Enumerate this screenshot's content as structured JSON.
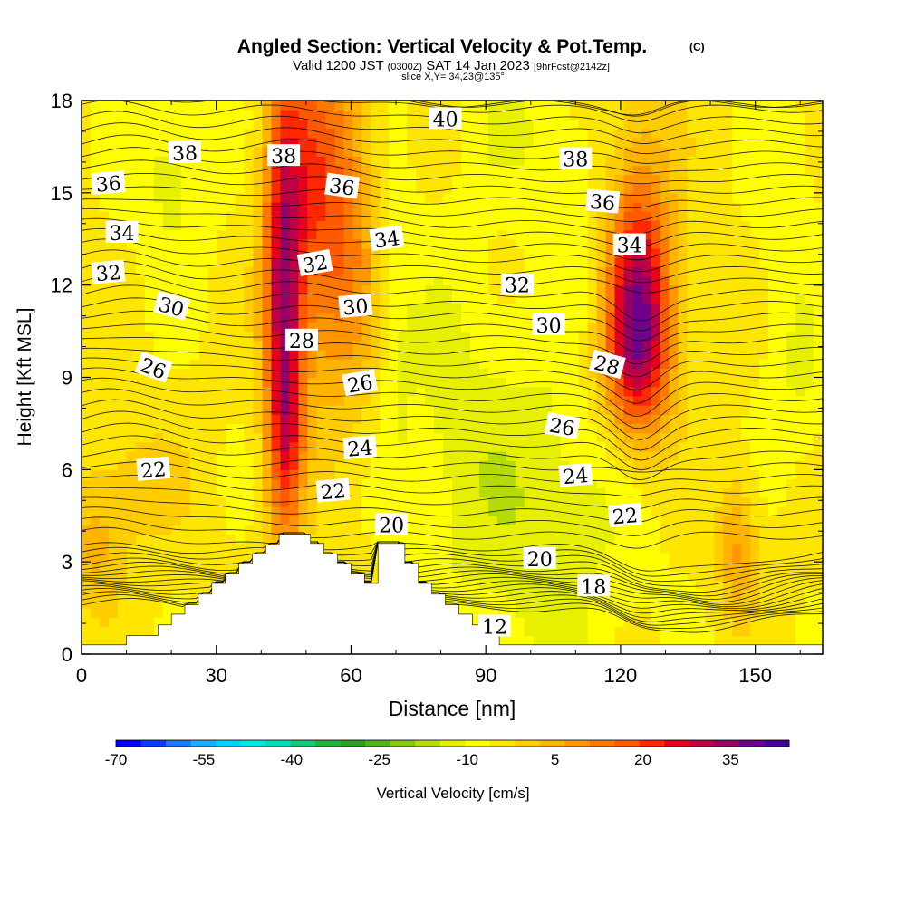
{
  "header": {
    "title": "Angled Section: Vertical Velocity & Pot.Temp.",
    "title_suffix": "(C)",
    "valid_prefix": "Valid 1200 JST",
    "valid_z": "(0300Z)",
    "valid_date": "SAT 14 Jan 2023",
    "valid_fcst": "[9hrFcst@2142z]",
    "slice": "slice X,Y= 34,23@135°"
  },
  "chart_data": {
    "type": "heatmap",
    "xlabel": "Distance [nm]",
    "ylabel": "Height [Kft MSL]",
    "xlim": [
      0,
      165
    ],
    "ylim": [
      0,
      18
    ],
    "xticks": [
      "0",
      "30",
      "60",
      "90",
      "120",
      "150"
    ],
    "yticks": [
      "0",
      "3",
      "6",
      "9",
      "12",
      "15",
      "18"
    ],
    "colorbar": {
      "label": "Vertical Velocity [cm/s]",
      "tick_labels": [
        "-70",
        "-55",
        "-40",
        "-25",
        "-10",
        "5",
        "20",
        "35"
      ],
      "min": -70,
      "max": 45,
      "step": 5,
      "colors": [
        "#0000ff",
        "#0a3cff",
        "#1e78ff",
        "#1eaaff",
        "#00d2ff",
        "#00e6e6",
        "#00dcb4",
        "#14c878",
        "#1eb43c",
        "#28a01e",
        "#50b41e",
        "#82c814",
        "#b4dc0a",
        "#e6f000",
        "#ffff00",
        "#ffe600",
        "#ffcd00",
        "#ffb400",
        "#ff9600",
        "#ff7800",
        "#ff5a00",
        "#ff2800",
        "#e6001e",
        "#be0046",
        "#960064",
        "#6e008c",
        "#46009b"
      ]
    },
    "background_velocity": 6,
    "velocity_features": [
      {
        "x": 45,
        "y": 11,
        "sx": 3,
        "sy": 5,
        "v": 40
      },
      {
        "x": 46,
        "y": 7,
        "sx": 2.5,
        "sy": 1.8,
        "v": 10
      },
      {
        "x": 52,
        "y": 15,
        "sx": 6,
        "sy": 4,
        "v": 25
      },
      {
        "x": 60,
        "y": 13,
        "sx": 5,
        "sy": 4,
        "v": 12
      },
      {
        "x": 124,
        "y": 10.8,
        "sx": 5,
        "sy": 2.5,
        "v": 40
      },
      {
        "x": 124,
        "y": 14,
        "sx": 6,
        "sy": 3.5,
        "v": 14
      },
      {
        "x": 122,
        "y": 9,
        "sx": 7,
        "sy": 1.5,
        "v": 8
      },
      {
        "x": 146,
        "y": 3.5,
        "sx": 3,
        "sy": 1.5,
        "v": 15
      },
      {
        "x": 3,
        "y": 3.5,
        "sx": 5,
        "sy": 1.5,
        "v": 10
      },
      {
        "x": 13,
        "y": 5.5,
        "sx": 7,
        "sy": 1.2,
        "v": 8
      },
      {
        "x": 103,
        "y": 4.5,
        "sx": 14,
        "sy": 4,
        "v": -10
      },
      {
        "x": 82,
        "y": 8,
        "sx": 8,
        "sy": 4,
        "v": -6
      },
      {
        "x": 20,
        "y": 16,
        "sx": 7,
        "sy": 2.5,
        "v": -8
      },
      {
        "x": 98,
        "y": 17,
        "sx": 8,
        "sy": 1.5,
        "v": -6
      },
      {
        "x": 70,
        "y": 11,
        "sx": 3,
        "sy": 5,
        "v": -5
      },
      {
        "x": 160,
        "y": 9,
        "sx": 5,
        "sy": 2,
        "v": -6
      },
      {
        "x": 156,
        "y": 15,
        "sx": 5,
        "sy": 3,
        "v": -5
      },
      {
        "x": 115,
        "y": 14,
        "sx": 7,
        "sy": 3,
        "v": -4
      }
    ],
    "terrain": [
      [
        0,
        0.3
      ],
      [
        10,
        0.3
      ],
      [
        10,
        0.6
      ],
      [
        17,
        0.6
      ],
      [
        17,
        0.95
      ],
      [
        20,
        0.95
      ],
      [
        20,
        1.3
      ],
      [
        23,
        1.3
      ],
      [
        23,
        1.6
      ],
      [
        26,
        1.6
      ],
      [
        26,
        1.95
      ],
      [
        29,
        1.95
      ],
      [
        29,
        2.3
      ],
      [
        32,
        2.3
      ],
      [
        32,
        2.6
      ],
      [
        35,
        2.6
      ],
      [
        35,
        2.95
      ],
      [
        38,
        2.95
      ],
      [
        38,
        3.25
      ],
      [
        41,
        3.25
      ],
      [
        41,
        3.55
      ],
      [
        44,
        3.55
      ],
      [
        44,
        3.9
      ],
      [
        51,
        3.9
      ],
      [
        51,
        3.6
      ],
      [
        54,
        3.6
      ],
      [
        54,
        3.25
      ],
      [
        57,
        3.25
      ],
      [
        57,
        2.95
      ],
      [
        60,
        2.95
      ],
      [
        60,
        2.6
      ],
      [
        63,
        2.6
      ],
      [
        63,
        2.3
      ],
      [
        66,
        2.3
      ],
      [
        66,
        3.6
      ],
      [
        72,
        3.6
      ],
      [
        72,
        2.95
      ],
      [
        75,
        2.95
      ],
      [
        75,
        2.3
      ],
      [
        78,
        2.3
      ],
      [
        78,
        1.95
      ],
      [
        81,
        1.95
      ],
      [
        81,
        1.6
      ],
      [
        84,
        1.6
      ],
      [
        84,
        1.3
      ],
      [
        87,
        1.3
      ],
      [
        87,
        0.95
      ],
      [
        90,
        0.95
      ],
      [
        90,
        0.6
      ],
      [
        93,
        0.6
      ],
      [
        93,
        0.3
      ],
      [
        165,
        0.3
      ]
    ],
    "theta_levels": [
      12,
      14,
      16,
      18,
      20,
      22,
      24,
      26,
      28,
      30,
      32,
      34,
      36,
      38,
      40
    ],
    "theta_minor_step": 0.5,
    "contour_labels": [
      {
        "text": "38",
        "x": 23,
        "y": 16.3,
        "rot": -2
      },
      {
        "text": "38",
        "x": 45,
        "y": 16.2,
        "rot": 0
      },
      {
        "text": "38",
        "x": 110,
        "y": 16.1,
        "rot": 0
      },
      {
        "text": "40",
        "x": 81,
        "y": 17.4,
        "rot": 0
      },
      {
        "text": "36",
        "x": 6,
        "y": 15.3,
        "rot": -5
      },
      {
        "text": "36",
        "x": 58,
        "y": 15.2,
        "rot": 8
      },
      {
        "text": "36",
        "x": 116,
        "y": 14.7,
        "rot": 5
      },
      {
        "text": "34",
        "x": 9,
        "y": 13.7,
        "rot": 0
      },
      {
        "text": "34",
        "x": 68,
        "y": 13.5,
        "rot": -8
      },
      {
        "text": "34",
        "x": 122,
        "y": 13.3,
        "rot": 0
      },
      {
        "text": "32",
        "x": 6,
        "y": 12.4,
        "rot": -5
      },
      {
        "text": "32",
        "x": 52,
        "y": 12.7,
        "rot": -10
      },
      {
        "text": "32",
        "x": 97,
        "y": 12.0,
        "rot": 0
      },
      {
        "text": "30",
        "x": 20,
        "y": 11.3,
        "rot": 15
      },
      {
        "text": "30",
        "x": 61,
        "y": 11.3,
        "rot": -5
      },
      {
        "text": "30",
        "x": 104,
        "y": 10.7,
        "rot": 0
      },
      {
        "text": "28",
        "x": 49,
        "y": 10.2,
        "rot": 0
      },
      {
        "text": "28",
        "x": 117,
        "y": 9.4,
        "rot": 15
      },
      {
        "text": "26",
        "x": 16,
        "y": 9.3,
        "rot": 20
      },
      {
        "text": "26",
        "x": 62,
        "y": 8.8,
        "rot": -10
      },
      {
        "text": "26",
        "x": 107,
        "y": 7.4,
        "rot": 10
      },
      {
        "text": "24",
        "x": 62,
        "y": 6.7,
        "rot": -5
      },
      {
        "text": "24",
        "x": 110,
        "y": 5.8,
        "rot": -5
      },
      {
        "text": "22",
        "x": 16,
        "y": 6.0,
        "rot": -5
      },
      {
        "text": "22",
        "x": 56,
        "y": 5.3,
        "rot": -5
      },
      {
        "text": "22",
        "x": 121,
        "y": 4.5,
        "rot": -5
      },
      {
        "text": "20",
        "x": 69,
        "y": 4.2,
        "rot": 0
      },
      {
        "text": "20",
        "x": 102,
        "y": 3.1,
        "rot": 0
      },
      {
        "text": "18",
        "x": 114,
        "y": 2.2,
        "rot": 0
      },
      {
        "text": "12",
        "x": 92,
        "y": 0.9,
        "rot": 0
      }
    ]
  }
}
